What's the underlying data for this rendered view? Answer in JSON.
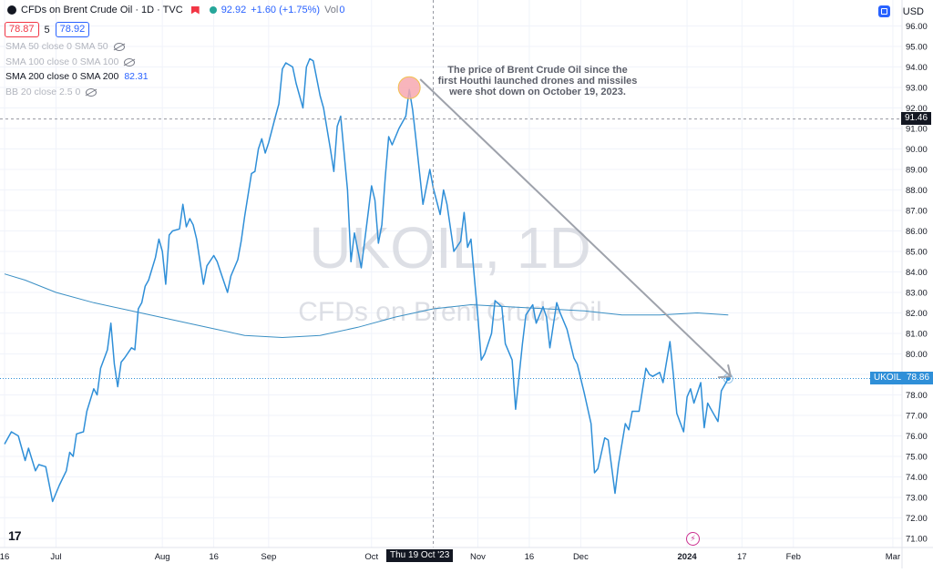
{
  "header": {
    "title": "CFDs on Brent Crude Oil · 1D · TVC",
    "last_price": "92.92",
    "change": "+1.60 (+1.75%)",
    "volume_label": "Vol",
    "volume_value": "0",
    "bid": "78.87",
    "spread": "5",
    "ask": "78.92",
    "currency": "USD"
  },
  "indicators": [
    {
      "label": "SMA 50 close 0 SMA 50",
      "value": "",
      "active": false
    },
    {
      "label": "SMA 100 close 0 SMA 100",
      "value": "",
      "active": false
    },
    {
      "label": "SMA 200 close 0 SMA 200",
      "value": "82.31",
      "active": true
    },
    {
      "label": "BB 20 close 2.5 0",
      "value": "",
      "active": false
    }
  ],
  "watermark": {
    "symbol": "UKOIL, 1D",
    "name": "CFDs on Brent Crude Oil"
  },
  "annotation": "The price of Brent Crude Oil since the\nfirst Houthi launched drones and missiles\nwere shot down on October 19, 2023.",
  "price_tags": {
    "crosshair": "91.46",
    "symbol": "UKOIL",
    "last": "78.86"
  },
  "crosshair_date": "Thu 19 Oct '23",
  "logo_text": "17",
  "colors": {
    "line": "#2f8fd8",
    "sma": "#3a8fc4",
    "arrow": "#9ea2ab",
    "marker": "#f7a8b0",
    "grid": "#f0f3fa"
  },
  "chart_data": {
    "type": "line",
    "title": "CFDs on Brent Crude Oil · 1D · TVC",
    "ylim": [
      70.5,
      96.5
    ],
    "y_ticks": [
      71,
      72,
      73,
      74,
      75,
      76,
      77,
      78,
      79,
      80,
      81,
      82,
      83,
      84,
      85,
      86,
      87,
      88,
      89,
      90,
      91,
      92,
      93,
      94,
      95,
      96
    ],
    "y_tick_labels": [
      "71.00",
      "72.00",
      "73.00",
      "74.00",
      "75.00",
      "76.00",
      "77.00",
      "78.00",
      "79.00",
      "80.00",
      "81.00",
      "82.00",
      "83.00",
      "84.00",
      "85.00",
      "86.00",
      "87.00",
      "88.00",
      "89.00",
      "90.00",
      "91.00",
      "92.00",
      "93.00",
      "94.00",
      "95.00",
      "96.00"
    ],
    "x_labels": [
      {
        "label": "16",
        "date": "2023-06-16"
      },
      {
        "label": "Jul",
        "date": "2023-07-01"
      },
      {
        "label": "Aug",
        "date": "2023-08-01"
      },
      {
        "label": "16",
        "date": "2023-08-16"
      },
      {
        "label": "Sep",
        "date": "2023-09-01"
      },
      {
        "label": "Oct",
        "date": "2023-10-01"
      },
      {
        "label": "Nov",
        "date": "2023-11-01"
      },
      {
        "label": "16",
        "date": "2023-11-16"
      },
      {
        "label": "Dec",
        "date": "2023-12-01"
      },
      {
        "label": "2024",
        "date": "2024-01-01"
      },
      {
        "label": "17",
        "date": "2024-01-17"
      },
      {
        "label": "Feb",
        "date": "2024-02-01"
      },
      {
        "label": "Mar",
        "date": "2024-03-01"
      }
    ],
    "x_range": [
      "2023-06-16",
      "2024-03-05"
    ],
    "grid": true,
    "series": [
      {
        "values": [
          [
            "2023-06-16",
            75.6
          ],
          [
            "2023-06-18",
            76.2
          ],
          [
            "2023-06-20",
            76.0
          ],
          [
            "2023-06-22",
            74.8
          ],
          [
            "2023-06-23",
            75.4
          ],
          [
            "2023-06-25",
            74.3
          ],
          [
            "2023-06-26",
            74.6
          ],
          [
            "2023-06-28",
            74.5
          ],
          [
            "2023-06-30",
            72.8
          ],
          [
            "2023-07-02",
            73.6
          ],
          [
            "2023-07-04",
            74.3
          ],
          [
            "2023-07-05",
            75.2
          ],
          [
            "2023-07-06",
            75.0
          ],
          [
            "2023-07-07",
            76.1
          ],
          [
            "2023-07-09",
            76.2
          ],
          [
            "2023-07-10",
            77.2
          ],
          [
            "2023-07-12",
            78.3
          ],
          [
            "2023-07-13",
            78.0
          ],
          [
            "2023-07-14",
            79.3
          ],
          [
            "2023-07-16",
            80.2
          ],
          [
            "2023-07-17",
            81.5
          ],
          [
            "2023-07-18",
            79.5
          ],
          [
            "2023-07-19",
            78.4
          ],
          [
            "2023-07-20",
            79.6
          ],
          [
            "2023-07-21",
            79.8
          ],
          [
            "2023-07-23",
            80.3
          ],
          [
            "2023-07-24",
            80.2
          ],
          [
            "2023-07-25",
            82.2
          ],
          [
            "2023-07-26",
            82.5
          ],
          [
            "2023-07-27",
            83.3
          ],
          [
            "2023-07-28",
            83.6
          ],
          [
            "2023-07-30",
            84.7
          ],
          [
            "2023-07-31",
            85.6
          ],
          [
            "2023-08-01",
            85.0
          ],
          [
            "2023-08-02",
            83.4
          ],
          [
            "2023-08-03",
            85.8
          ],
          [
            "2023-08-04",
            86.0
          ],
          [
            "2023-08-06",
            86.1
          ],
          [
            "2023-08-07",
            87.3
          ],
          [
            "2023-08-08",
            86.2
          ],
          [
            "2023-08-09",
            86.6
          ],
          [
            "2023-08-10",
            86.3
          ],
          [
            "2023-08-11",
            85.6
          ],
          [
            "2023-08-13",
            83.4
          ],
          [
            "2023-08-14",
            84.3
          ],
          [
            "2023-08-16",
            84.8
          ],
          [
            "2023-08-17",
            84.5
          ],
          [
            "2023-08-18",
            84.0
          ],
          [
            "2023-08-20",
            83.0
          ],
          [
            "2023-08-21",
            83.8
          ],
          [
            "2023-08-22",
            84.2
          ],
          [
            "2023-08-23",
            84.6
          ],
          [
            "2023-08-24",
            85.5
          ],
          [
            "2023-08-25",
            86.7
          ],
          [
            "2023-08-27",
            88.8
          ],
          [
            "2023-08-28",
            88.9
          ],
          [
            "2023-08-29",
            90.0
          ],
          [
            "2023-08-30",
            90.5
          ],
          [
            "2023-08-31",
            89.8
          ],
          [
            "2023-09-01",
            90.3
          ],
          [
            "2023-09-03",
            91.6
          ],
          [
            "2023-09-04",
            92.2
          ],
          [
            "2023-09-05",
            93.9
          ],
          [
            "2023-09-06",
            94.2
          ],
          [
            "2023-09-08",
            94.0
          ],
          [
            "2023-09-09",
            93.2
          ],
          [
            "2023-09-11",
            92.0
          ],
          [
            "2023-09-12",
            94.0
          ],
          [
            "2023-09-13",
            94.4
          ],
          [
            "2023-09-14",
            94.3
          ],
          [
            "2023-09-16",
            92.6
          ],
          [
            "2023-09-17",
            92.0
          ],
          [
            "2023-09-19",
            90.0
          ],
          [
            "2023-09-20",
            88.9
          ],
          [
            "2023-09-21",
            91.1
          ],
          [
            "2023-09-22",
            91.6
          ],
          [
            "2023-09-24",
            88.0
          ],
          [
            "2023-09-25",
            84.5
          ],
          [
            "2023-09-26",
            85.9
          ],
          [
            "2023-09-28",
            84.2
          ],
          [
            "2023-09-29",
            85.5
          ],
          [
            "2023-10-01",
            88.2
          ],
          [
            "2023-10-02",
            87.5
          ],
          [
            "2023-10-03",
            85.4
          ],
          [
            "2023-10-04",
            86.3
          ],
          [
            "2023-10-05",
            88.6
          ],
          [
            "2023-10-06",
            90.6
          ],
          [
            "2023-10-07",
            90.2
          ],
          [
            "2023-10-09",
            91.0
          ],
          [
            "2023-10-11",
            91.6
          ],
          [
            "2023-10-12",
            92.9
          ],
          [
            "2023-10-13",
            91.9
          ],
          [
            "2023-10-14",
            90.4
          ],
          [
            "2023-10-16",
            87.3
          ],
          [
            "2023-10-18",
            89.0
          ],
          [
            "2023-10-19",
            88.1
          ],
          [
            "2023-10-21",
            86.8
          ],
          [
            "2023-10-22",
            88.0
          ],
          [
            "2023-10-23",
            87.3
          ],
          [
            "2023-10-25",
            85.0
          ],
          [
            "2023-10-27",
            85.5
          ],
          [
            "2023-10-28",
            86.9
          ],
          [
            "2023-10-29",
            85.2
          ],
          [
            "2023-10-30",
            85.6
          ],
          [
            "2023-11-01",
            81.8
          ],
          [
            "2023-11-02",
            79.7
          ],
          [
            "2023-11-03",
            80.0
          ],
          [
            "2023-11-05",
            81.0
          ],
          [
            "2023-11-06",
            82.6
          ],
          [
            "2023-11-08",
            82.3
          ],
          [
            "2023-11-09",
            80.5
          ],
          [
            "2023-11-11",
            79.7
          ],
          [
            "2023-11-12",
            77.3
          ],
          [
            "2023-11-14",
            80.5
          ],
          [
            "2023-11-15",
            81.9
          ],
          [
            "2023-11-17",
            82.4
          ],
          [
            "2023-11-18",
            81.5
          ],
          [
            "2023-11-20",
            82.3
          ],
          [
            "2023-11-21",
            81.8
          ],
          [
            "2023-11-22",
            80.3
          ],
          [
            "2023-11-24",
            82.5
          ],
          [
            "2023-11-25",
            82.0
          ],
          [
            "2023-11-27",
            81.2
          ],
          [
            "2023-11-29",
            79.8
          ],
          [
            "2023-11-30",
            79.5
          ],
          [
            "2023-12-02",
            78.1
          ],
          [
            "2023-12-04",
            76.6
          ],
          [
            "2023-12-05",
            74.2
          ],
          [
            "2023-12-06",
            74.4
          ],
          [
            "2023-12-08",
            75.9
          ],
          [
            "2023-12-09",
            75.8
          ],
          [
            "2023-12-11",
            73.2
          ],
          [
            "2023-12-12",
            74.6
          ],
          [
            "2023-12-14",
            76.6
          ],
          [
            "2023-12-15",
            76.3
          ],
          [
            "2023-12-16",
            77.2
          ],
          [
            "2023-12-18",
            77.2
          ],
          [
            "2023-12-20",
            79.3
          ],
          [
            "2023-12-21",
            79.0
          ],
          [
            "2023-12-22",
            78.9
          ],
          [
            "2023-12-24",
            79.1
          ],
          [
            "2023-12-25",
            78.6
          ],
          [
            "2023-12-27",
            80.6
          ],
          [
            "2023-12-28",
            79.0
          ],
          [
            "2023-12-29",
            77.1
          ],
          [
            "2023-12-31",
            76.2
          ],
          [
            "2024-01-01",
            77.9
          ],
          [
            "2024-01-02",
            78.3
          ],
          [
            "2024-01-03",
            77.6
          ],
          [
            "2024-01-05",
            78.6
          ],
          [
            "2024-01-06",
            76.4
          ],
          [
            "2024-01-07",
            77.6
          ],
          [
            "2024-01-08",
            77.3
          ],
          [
            "2024-01-10",
            76.7
          ],
          [
            "2024-01-11",
            78.2
          ],
          [
            "2024-01-13",
            78.8
          ]
        ]
      },
      {
        "name": "SMA 200",
        "values": [
          [
            "2023-06-16",
            83.9
          ],
          [
            "2023-06-22",
            83.6
          ],
          [
            "2023-07-01",
            83.0
          ],
          [
            "2023-07-12",
            82.5
          ],
          [
            "2023-07-23",
            82.1
          ],
          [
            "2023-08-03",
            81.7
          ],
          [
            "2023-08-14",
            81.3
          ],
          [
            "2023-08-25",
            80.9
          ],
          [
            "2023-09-05",
            80.8
          ],
          [
            "2023-09-16",
            80.9
          ],
          [
            "2023-09-27",
            81.3
          ],
          [
            "2023-10-08",
            81.8
          ],
          [
            "2023-10-19",
            82.2
          ],
          [
            "2023-10-30",
            82.4
          ],
          [
            "2023-11-10",
            82.3
          ],
          [
            "2023-11-21",
            82.2
          ],
          [
            "2023-12-02",
            82.1
          ],
          [
            "2023-12-13",
            81.9
          ],
          [
            "2023-12-24",
            81.9
          ],
          [
            "2024-01-04",
            82.0
          ],
          [
            "2024-01-13",
            81.9
          ]
        ]
      }
    ]
  }
}
